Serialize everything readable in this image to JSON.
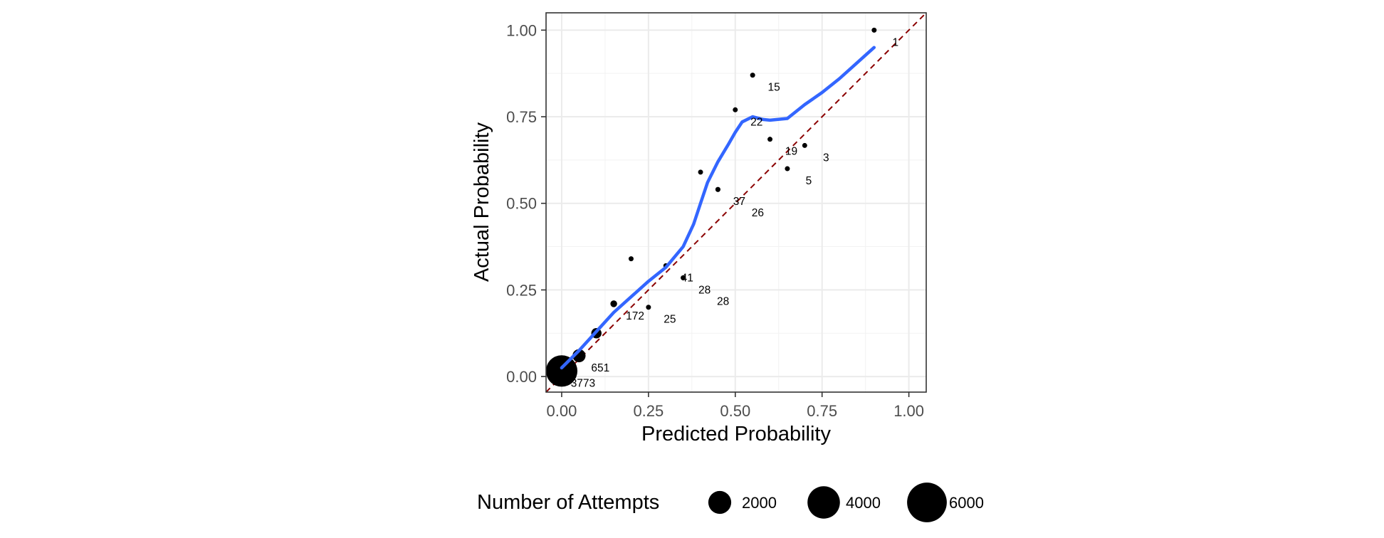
{
  "chart_data": {
    "type": "scatter",
    "xlabel": "Predicted Probability",
    "ylabel": "Actual Probability",
    "xlim": [
      -0.045,
      1.05
    ],
    "ylim": [
      -0.045,
      1.05
    ],
    "x_ticks": [
      0.0,
      0.25,
      0.5,
      0.75,
      1.0
    ],
    "y_ticks": [
      0.0,
      0.25,
      0.5,
      0.75,
      1.0
    ],
    "x_tick_labels": [
      "0.00",
      "0.25",
      "0.50",
      "0.75",
      "1.00"
    ],
    "y_tick_labels": [
      "0.00",
      "0.25",
      "0.50",
      "0.75",
      "1.00"
    ],
    "grid": true,
    "theme": "bw",
    "points": [
      {
        "x": 0.0,
        "y": 0.016,
        "attempts": 3773,
        "label": "3773"
      },
      {
        "x": 0.05,
        "y": 0.06,
        "attempts": 651,
        "label": "651"
      },
      {
        "x": 0.1,
        "y": 0.125,
        "attempts": 400,
        "label": "",
        "est": true
      },
      {
        "x": 0.15,
        "y": 0.21,
        "attempts": 172,
        "label": "172"
      },
      {
        "x": 0.2,
        "y": 0.34,
        "attempts": 50,
        "label": "",
        "est": true
      },
      {
        "x": 0.25,
        "y": 0.2,
        "attempts": 25,
        "label": "25"
      },
      {
        "x": 0.3,
        "y": 0.32,
        "attempts": 41,
        "label": "41"
      },
      {
        "x": 0.35,
        "y": 0.285,
        "attempts": 28,
        "label": "28"
      },
      {
        "x": 0.35,
        "y": 0.285,
        "attempts": 28,
        "label": "28"
      },
      {
        "x": 0.4,
        "y": 0.59,
        "attempts": 40,
        "label": "",
        "est": true
      },
      {
        "x": 0.45,
        "y": 0.54,
        "attempts": 37,
        "label": "37"
      },
      {
        "x": 0.45,
        "y": 0.54,
        "attempts": 26,
        "label": "26"
      },
      {
        "x": 0.5,
        "y": 0.77,
        "attempts": 22,
        "label": "22"
      },
      {
        "x": 0.55,
        "y": 0.87,
        "attempts": 15,
        "label": "15"
      },
      {
        "x": 0.6,
        "y": 0.685,
        "attempts": 19,
        "label": "19"
      },
      {
        "x": 0.65,
        "y": 0.6,
        "attempts": 5,
        "label": "5"
      },
      {
        "x": 0.7,
        "y": 0.667,
        "attempts": 3,
        "label": "3"
      },
      {
        "x": 0.9,
        "y": 1.0,
        "attempts": 1,
        "label": "1"
      }
    ],
    "smooth_line": {
      "color": "#3366ff",
      "x": [
        0.0,
        0.05,
        0.1,
        0.15,
        0.2,
        0.25,
        0.3,
        0.35,
        0.38,
        0.4,
        0.42,
        0.45,
        0.48,
        0.5,
        0.52,
        0.55,
        0.58,
        0.6,
        0.65,
        0.7,
        0.75,
        0.8,
        0.85,
        0.9
      ],
      "y": [
        0.025,
        0.075,
        0.13,
        0.185,
        0.23,
        0.275,
        0.315,
        0.375,
        0.44,
        0.5,
        0.56,
        0.62,
        0.67,
        0.705,
        0.735,
        0.75,
        0.742,
        0.74,
        0.745,
        0.785,
        0.82,
        0.86,
        0.905,
        0.95
      ]
    },
    "reference_line": {
      "slope": 1,
      "intercept": 0,
      "color": "#8b0000",
      "style": "dashed"
    },
    "legend": {
      "title": "Number of Attempts",
      "placement": "bottom",
      "entries": [
        {
          "label": "2000",
          "value": 2000
        },
        {
          "label": "4000",
          "value": 4000
        },
        {
          "label": "6000",
          "value": 6000
        }
      ]
    }
  }
}
